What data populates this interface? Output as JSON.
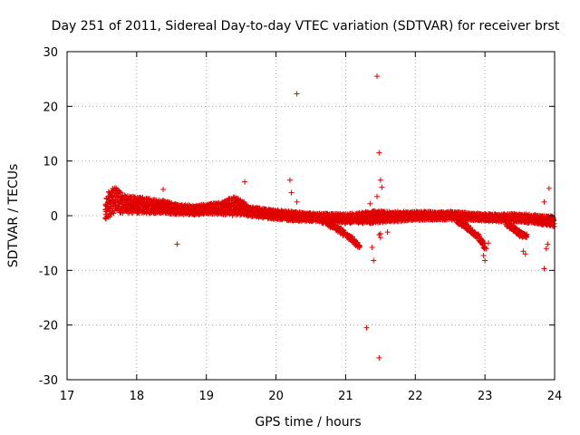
{
  "chart_data": {
    "type": "scatter",
    "title": "Day 251 of 2011, Sidereal Day-to-day VTEC variation (SDTVAR) for receiver brst",
    "xlabel": "GPS time / hours",
    "ylabel": "SDTVAR / TECUs",
    "xlim": [
      17,
      24
    ],
    "ylim": [
      -30,
      30
    ],
    "xticks": [
      17,
      18,
      19,
      20,
      21,
      22,
      23,
      24
    ],
    "yticks": [
      -30,
      -20,
      -10,
      0,
      10,
      20,
      30
    ],
    "xtick_labels": [
      "17",
      "18",
      "19",
      "20",
      "21",
      "22",
      "23",
      "24"
    ],
    "ytick_labels": [
      "-30",
      "-20",
      "-10",
      "0",
      "10",
      "20",
      "30"
    ],
    "grid": true,
    "marker": "+",
    "color": "#e00000",
    "series": [
      {
        "name": "SDTVAR",
        "band": {
          "x": [
            17.55,
            17.6,
            17.7,
            17.8,
            17.9,
            18.0,
            18.2,
            18.4,
            18.6,
            18.8,
            19.0,
            19.2,
            19.4,
            19.5,
            19.6,
            19.8,
            20.0,
            20.2,
            20.4,
            20.6,
            20.8,
            21.0,
            21.2,
            21.4,
            21.6,
            21.8,
            22.0,
            22.2,
            22.4,
            22.6,
            22.8,
            23.0,
            23.2,
            23.4,
            23.6,
            23.8,
            24.0
          ],
          "center": [
            1.0,
            2.2,
            3.0,
            2.2,
            2.0,
            2.0,
            1.8,
            1.6,
            1.2,
            1.0,
            1.2,
            1.4,
            1.8,
            1.6,
            0.8,
            0.5,
            0.2,
            0.0,
            -0.2,
            -0.3,
            -0.4,
            -0.5,
            -0.4,
            -0.2,
            -0.2,
            -0.1,
            0.0,
            0.0,
            0.0,
            0.0,
            -0.2,
            -0.3,
            -0.4,
            -0.3,
            -0.5,
            -0.8,
            -1.0
          ],
          "halfwidth": [
            1.8,
            2.8,
            2.4,
            1.8,
            1.6,
            1.6,
            1.4,
            1.2,
            1.0,
            0.9,
            1.0,
            1.2,
            1.8,
            1.6,
            1.0,
            0.9,
            0.9,
            0.9,
            0.8,
            0.8,
            0.8,
            0.9,
            1.0,
            1.2,
            1.0,
            0.9,
            0.8,
            0.8,
            0.8,
            0.8,
            0.7,
            0.7,
            0.7,
            0.7,
            0.8,
            0.9,
            1.0
          ]
        },
        "tails": [
          {
            "x": [
              20.65,
              20.8,
              20.95,
              21.05,
              21.15,
              21.2
            ],
            "y": [
              -1.0,
              -2.0,
              -3.2,
              -4.2,
              -5.2,
              -6.0
            ]
          },
          {
            "x": [
              22.6,
              22.7,
              22.8,
              22.9,
              22.95,
              23.0
            ],
            "y": [
              -1.0,
              -2.0,
              -3.0,
              -4.0,
              -5.0,
              -6.0
            ]
          },
          {
            "x": [
              23.3,
              23.4,
              23.5,
              23.6
            ],
            "y": [
              -1.5,
              -2.5,
              -3.5,
              -4.0
            ]
          }
        ],
        "outliers": {
          "x": [
            20.3,
            21.45,
            21.48,
            21.5,
            21.52,
            21.48,
            20.2,
            20.22,
            20.3,
            19.55,
            18.38,
            18.58,
            21.3,
            21.4,
            21.38,
            21.35,
            21.5,
            21.45,
            22.98,
            23.0,
            23.02,
            23.05,
            23.55,
            23.58,
            23.85,
            23.88,
            23.9,
            23.85,
            23.92,
            21.48,
            21.5,
            21.6
          ],
          "y": [
            22.3,
            25.5,
            11.5,
            6.5,
            5.2,
            -26.0,
            6.5,
            4.2,
            2.5,
            6.2,
            4.8,
            -5.2,
            -20.5,
            -8.2,
            -5.8,
            2.2,
            -3.3,
            3.5,
            -7.3,
            -8.2,
            -6.0,
            -5.0,
            -6.5,
            -7.0,
            -9.7,
            -6.0,
            -5.2,
            2.5,
            5.0,
            -3.5,
            -4.0,
            -3.0
          ]
        }
      }
    ]
  }
}
